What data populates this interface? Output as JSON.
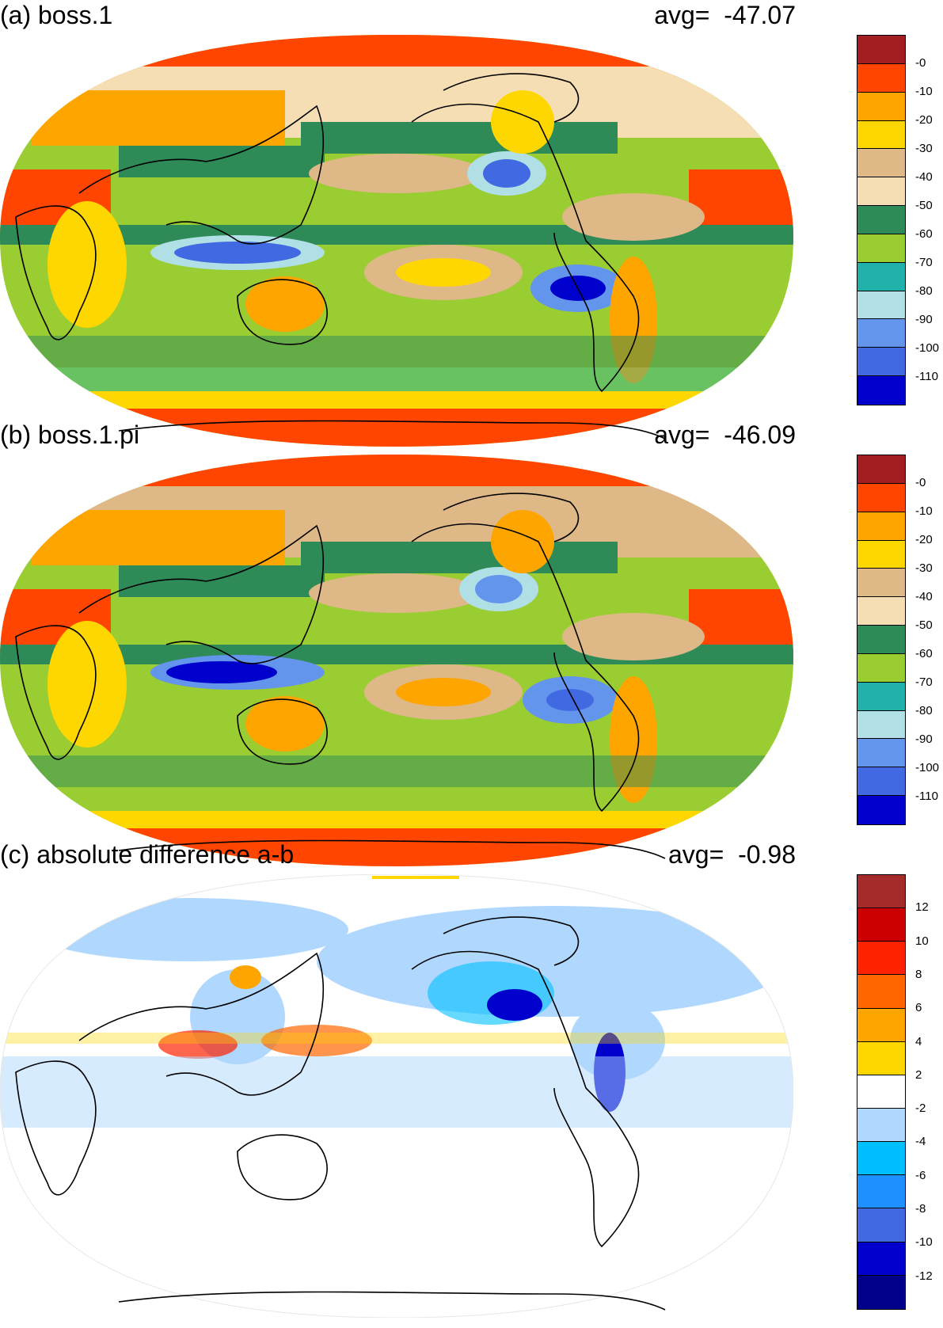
{
  "panels": [
    {
      "title": "(a) boss.1",
      "avg_label": "avg=",
      "avg_value": "-47.07",
      "colorbar": {
        "labels": [
          "-0",
          "-10",
          "-20",
          "-30",
          "-40",
          "-50",
          "-60",
          "-70",
          "-80",
          "-90",
          "-100",
          "-110"
        ],
        "colors": [
          "#A31E22",
          "#FF4500",
          "#FFA500",
          "#FFD700",
          "#DEB887",
          "#F5DEB3",
          "#2E8B57",
          "#9ACD32",
          "#20B2AA",
          "#B0E0E6",
          "#6495ED",
          "#4169E1",
          "#0000CD"
        ]
      }
    },
    {
      "title": "(b) boss.1.pi",
      "avg_label": "avg=",
      "avg_value": "-46.09",
      "colorbar": {
        "labels": [
          "-0",
          "-10",
          "-20",
          "-30",
          "-40",
          "-50",
          "-60",
          "-70",
          "-80",
          "-90",
          "-100",
          "-110"
        ],
        "colors": [
          "#A31E22",
          "#FF4500",
          "#FFA500",
          "#FFD700",
          "#DEB887",
          "#F5DEB3",
          "#2E8B57",
          "#9ACD32",
          "#20B2AA",
          "#B0E0E6",
          "#6495ED",
          "#4169E1",
          "#0000CD"
        ]
      }
    },
    {
      "title": "(c) absolute difference a-b",
      "avg_label": "avg=",
      "avg_value": "-0.98",
      "colorbar": {
        "labels": [
          "12",
          "10",
          "8",
          "6",
          "4",
          "2",
          "-2",
          "-4",
          "-6",
          "-8",
          "-10",
          "-12"
        ],
        "colors": [
          "#A52A2A",
          "#CC0000",
          "#FF2200",
          "#FF6600",
          "#FFA500",
          "#FFD700",
          "#FFFFFF",
          "#B0D8FF",
          "#00BFFF",
          "#1E90FF",
          "#4169E1",
          "#0000CD",
          "#00008B"
        ]
      }
    }
  ]
}
